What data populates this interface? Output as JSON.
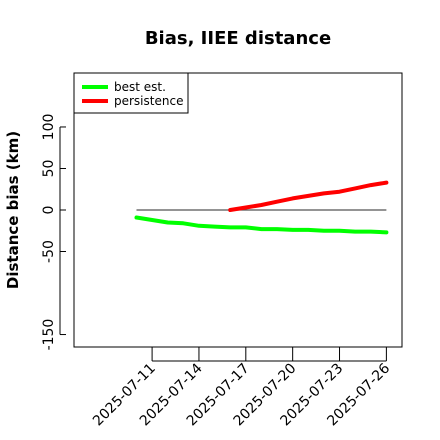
{
  "chart_data": {
    "type": "line",
    "title": "Bias, IIEE distance",
    "xlabel": "",
    "ylabel": "Distance bias (km)",
    "x_ticks": [
      "2025-07-11",
      "2025-07-14",
      "2025-07-17",
      "2025-07-20",
      "2025-07-23",
      "2025-07-26"
    ],
    "y_ticks": [
      -150,
      -50,
      0,
      50,
      100
    ],
    "xlim": [
      "2025-07-06",
      "2025-07-27"
    ],
    "ylim": [
      -165,
      165
    ],
    "grid": false,
    "legend": "top-left",
    "reference_line": {
      "y": 0,
      "x": [
        "2025-07-10",
        "2025-07-26"
      ],
      "color": "#555555"
    },
    "series": [
      {
        "name": "best est.",
        "color": "#00ff00",
        "x": [
          "2025-07-10",
          "2025-07-11",
          "2025-07-12",
          "2025-07-13",
          "2025-07-14",
          "2025-07-15",
          "2025-07-16",
          "2025-07-17",
          "2025-07-18",
          "2025-07-19",
          "2025-07-20",
          "2025-07-21",
          "2025-07-22",
          "2025-07-23",
          "2025-07-24",
          "2025-07-25",
          "2025-07-26"
        ],
        "values": [
          -9,
          -12,
          -15,
          -16,
          -19,
          -20,
          -21,
          -21,
          -23,
          -23,
          -24,
          -24,
          -25,
          -25,
          -26,
          -26,
          -27
        ]
      },
      {
        "name": "persistence",
        "color": "#ff0000",
        "x": [
          "2025-07-16",
          "2025-07-17",
          "2025-07-18",
          "2025-07-19",
          "2025-07-20",
          "2025-07-21",
          "2025-07-22",
          "2025-07-23",
          "2025-07-24",
          "2025-07-25",
          "2025-07-26"
        ],
        "values": [
          0,
          3,
          6,
          10,
          14,
          17,
          20,
          22,
          26,
          30,
          33
        ]
      }
    ]
  }
}
